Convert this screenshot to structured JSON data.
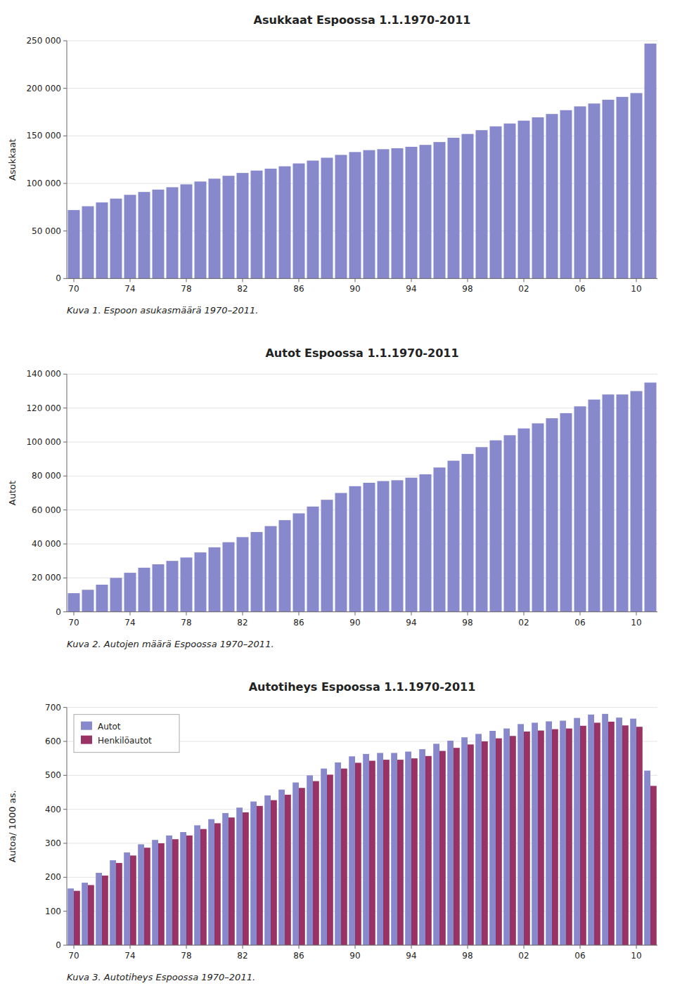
{
  "chart_data": [
    {
      "type": "bar",
      "title": "Asukkaat Espoossa 1.1.1970-2011",
      "ylabel": "Asukkaat",
      "annotations": [
        "Kuva 1. Espoon asukasmäärä 1970–2011."
      ],
      "categories": [
        "70",
        null,
        null,
        null,
        "74",
        null,
        null,
        null,
        "78",
        null,
        null,
        null,
        "82",
        null,
        null,
        null,
        "86",
        null,
        null,
        null,
        "90",
        null,
        null,
        null,
        "94",
        null,
        null,
        null,
        "98",
        null,
        null,
        null,
        "02",
        null,
        null,
        null,
        "06",
        null,
        null,
        null,
        "10",
        null
      ],
      "values": [
        72000,
        76000,
        80000,
        84000,
        88000,
        91000,
        93500,
        96000,
        99000,
        102000,
        105000,
        108000,
        111000,
        113500,
        115500,
        118000,
        121000,
        124000,
        127000,
        130000,
        133000,
        135000,
        136000,
        137000,
        138500,
        140500,
        143500,
        148000,
        152000,
        156000,
        160000,
        163000,
        166000,
        169500,
        173000,
        177000,
        181000,
        184000,
        188000,
        191000,
        195000,
        247000
      ],
      "color": "#8888CC",
      "ylim": [
        0,
        250000
      ],
      "yticks": [
        0,
        {
          "value": 50000,
          "label": "50 000"
        },
        {
          "value": 100000,
          "label": "100 000"
        },
        {
          "value": 150000,
          "label": "150 000"
        },
        {
          "value": 200000,
          "label": "200 000"
        },
        {
          "value": 250000,
          "label": "250 000"
        }
      ],
      "grid": true
    },
    {
      "type": "bar",
      "title": "Autot Espoossa 1.1.1970-2011",
      "ylabel": "Autot",
      "annotations": [
        "Kuva 2. Autojen määrä Espoossa 1970–2011."
      ],
      "categories": [
        "70",
        null,
        null,
        null,
        "74",
        null,
        null,
        null,
        "78",
        null,
        null,
        null,
        "82",
        null,
        null,
        null,
        "86",
        null,
        null,
        null,
        "90",
        null,
        null,
        null,
        "94",
        null,
        null,
        null,
        "98",
        null,
        null,
        null,
        "02",
        null,
        null,
        null,
        "06",
        null,
        null,
        null,
        "10",
        null
      ],
      "values": [
        11000,
        13000,
        16000,
        20000,
        23000,
        26000,
        28000,
        30000,
        32000,
        35000,
        38000,
        41000,
        44000,
        47000,
        50500,
        54000,
        58000,
        62000,
        66000,
        70000,
        74000,
        76000,
        77000,
        77500,
        79000,
        81000,
        85000,
        89000,
        93000,
        97000,
        101000,
        104000,
        108000,
        111000,
        114000,
        117000,
        121000,
        125000,
        128000,
        128000,
        130000,
        135000
      ],
      "color": "#8888CC",
      "ylim": [
        0,
        140000
      ],
      "yticks": [
        0,
        {
          "value": 20000,
          "label": "20 000"
        },
        {
          "value": 40000,
          "label": "40 000"
        },
        {
          "value": 60000,
          "label": "60 000"
        },
        {
          "value": 80000,
          "label": "80 000"
        },
        {
          "value": 100000,
          "label": "100 000"
        },
        {
          "value": 120000,
          "label": "120 000"
        },
        {
          "value": 140000,
          "label": "140 000"
        }
      ],
      "grid": true
    },
    {
      "type": "bar",
      "title": "Autotiheys Espoossa 1.1.1970-2011",
      "ylabel": "Autoa/ 1000 as.",
      "annotations": [
        "Kuva 3. Autotiheys Espoossa 1970–2011."
      ],
      "categories": [
        "70",
        null,
        null,
        null,
        "74",
        null,
        null,
        null,
        "78",
        null,
        null,
        null,
        "82",
        null,
        null,
        null,
        "86",
        null,
        null,
        null,
        "90",
        null,
        null,
        null,
        "94",
        null,
        null,
        null,
        "98",
        null,
        null,
        null,
        "02",
        null,
        null,
        null,
        "06",
        null,
        null,
        null,
        "10",
        null
      ],
      "series": [
        {
          "name": "Autot",
          "color": "#8888CC",
          "values": [
            167,
            184,
            213,
            250,
            273,
            297,
            310,
            323,
            333,
            353,
            371,
            389,
            405,
            423,
            441,
            458,
            479,
            500,
            520,
            538,
            556,
            563,
            566,
            566,
            570,
            577,
            593,
            602,
            612,
            622,
            631,
            638,
            651,
            655,
            659,
            661,
            669,
            679,
            681,
            670,
            667,
            514
          ]
        },
        {
          "name": "Henkilöautot",
          "color": "#993366",
          "values": [
            160,
            177,
            205,
            242,
            264,
            287,
            300,
            312,
            323,
            342,
            359,
            376,
            391,
            410,
            427,
            443,
            463,
            483,
            502,
            520,
            537,
            543,
            546,
            546,
            550,
            557,
            572,
            581,
            591,
            600,
            609,
            616,
            629,
            632,
            636,
            638,
            646,
            655,
            658,
            647,
            643,
            469
          ]
        }
      ],
      "ylim": [
        0,
        700
      ],
      "yticks": [
        0,
        100,
        200,
        300,
        400,
        500,
        600,
        700
      ],
      "grid": true,
      "legend": "upper-left"
    }
  ]
}
